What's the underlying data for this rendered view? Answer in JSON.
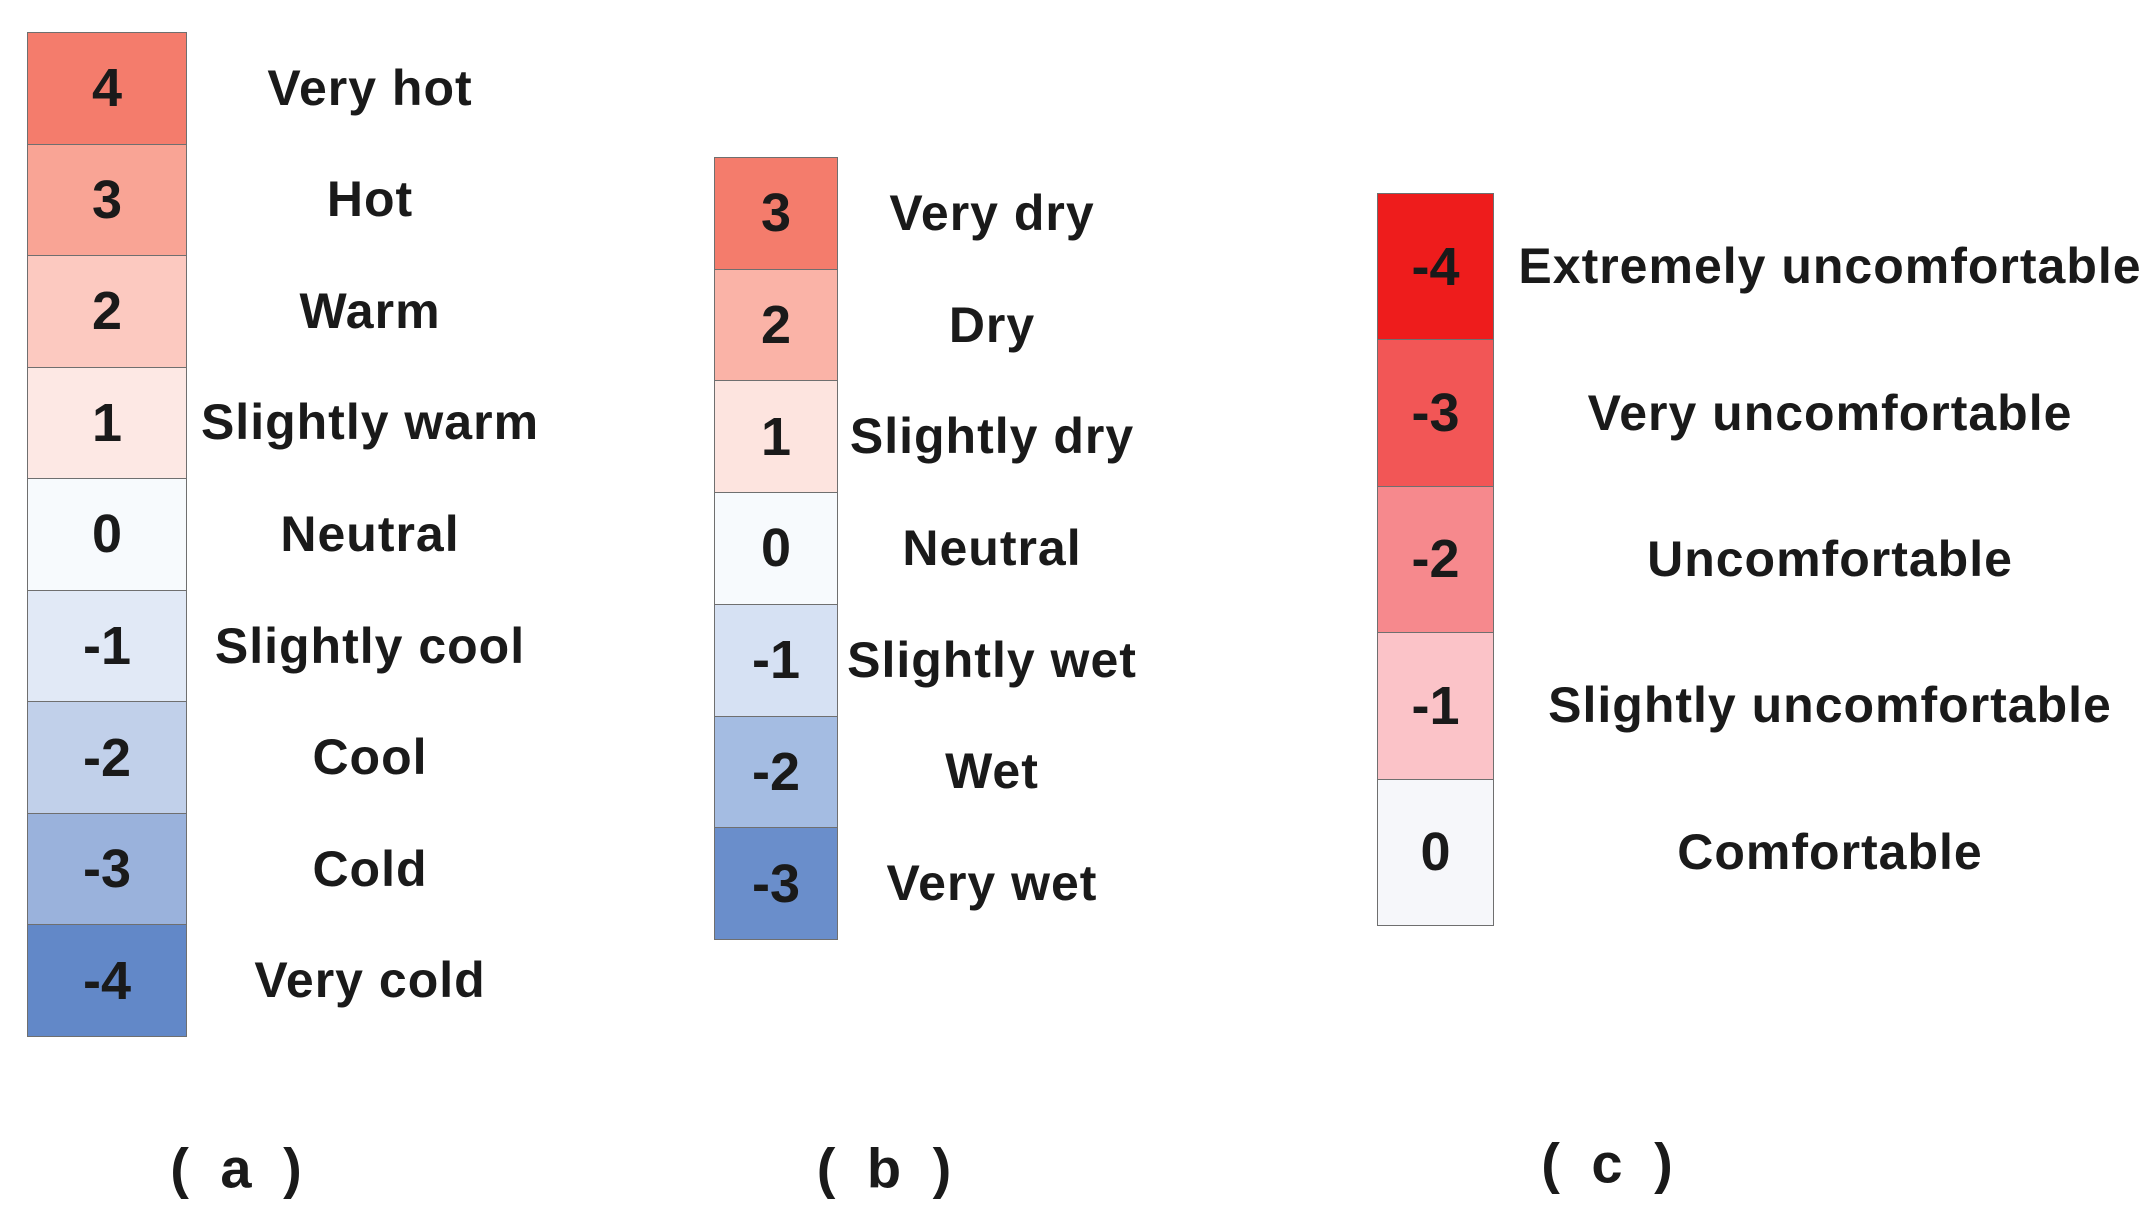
{
  "panels": [
    {
      "id": "a",
      "caption": "( a )",
      "levels": [
        {
          "value": "4",
          "label": "Very hot",
          "color": "#f47c6c"
        },
        {
          "value": "3",
          "label": "Hot",
          "color": "#f9a495"
        },
        {
          "value": "2",
          "label": "Warm",
          "color": "#fcc9c0"
        },
        {
          "value": "1",
          "label": "Slightly warm",
          "color": "#fde8e4"
        },
        {
          "value": "0",
          "label": "Neutral",
          "color": "#f7fafd"
        },
        {
          "value": "-1",
          "label": "Slightly cool",
          "color": "#e1e9f6"
        },
        {
          "value": "-2",
          "label": "Cool",
          "color": "#c1d0ea"
        },
        {
          "value": "-3",
          "label": "Cold",
          "color": "#9ab2dc"
        },
        {
          "value": "-4",
          "label": "Very cold",
          "color": "#6288c8"
        }
      ]
    },
    {
      "id": "b",
      "caption": "( b )",
      "levels": [
        {
          "value": "3",
          "label": "Very dry",
          "color": "#f47c6c"
        },
        {
          "value": "2",
          "label": "Dry",
          "color": "#fab3a7"
        },
        {
          "value": "1",
          "label": "Slightly dry",
          "color": "#fde4df"
        },
        {
          "value": "0",
          "label": "Neutral",
          "color": "#f7fafd"
        },
        {
          "value": "-1",
          "label": "Slightly wet",
          "color": "#d6e1f3"
        },
        {
          "value": "-2",
          "label": "Wet",
          "color": "#a4bce2"
        },
        {
          "value": "-3",
          "label": "Very wet",
          "color": "#6a8ecb"
        }
      ]
    },
    {
      "id": "c",
      "caption": "( c )",
      "levels": [
        {
          "value": "-4",
          "label": "Extremely uncomfortable",
          "color": "#ee1c1c"
        },
        {
          "value": "-3",
          "label": "Very uncomfortable",
          "color": "#f25656"
        },
        {
          "value": "-2",
          "label": "Uncomfortable",
          "color": "#f6898d"
        },
        {
          "value": "-1",
          "label": "Slightly uncomfortable",
          "color": "#fbc3c8"
        },
        {
          "value": "0",
          "label": "Comfortable",
          "color": "#f6f7fa"
        }
      ]
    }
  ]
}
